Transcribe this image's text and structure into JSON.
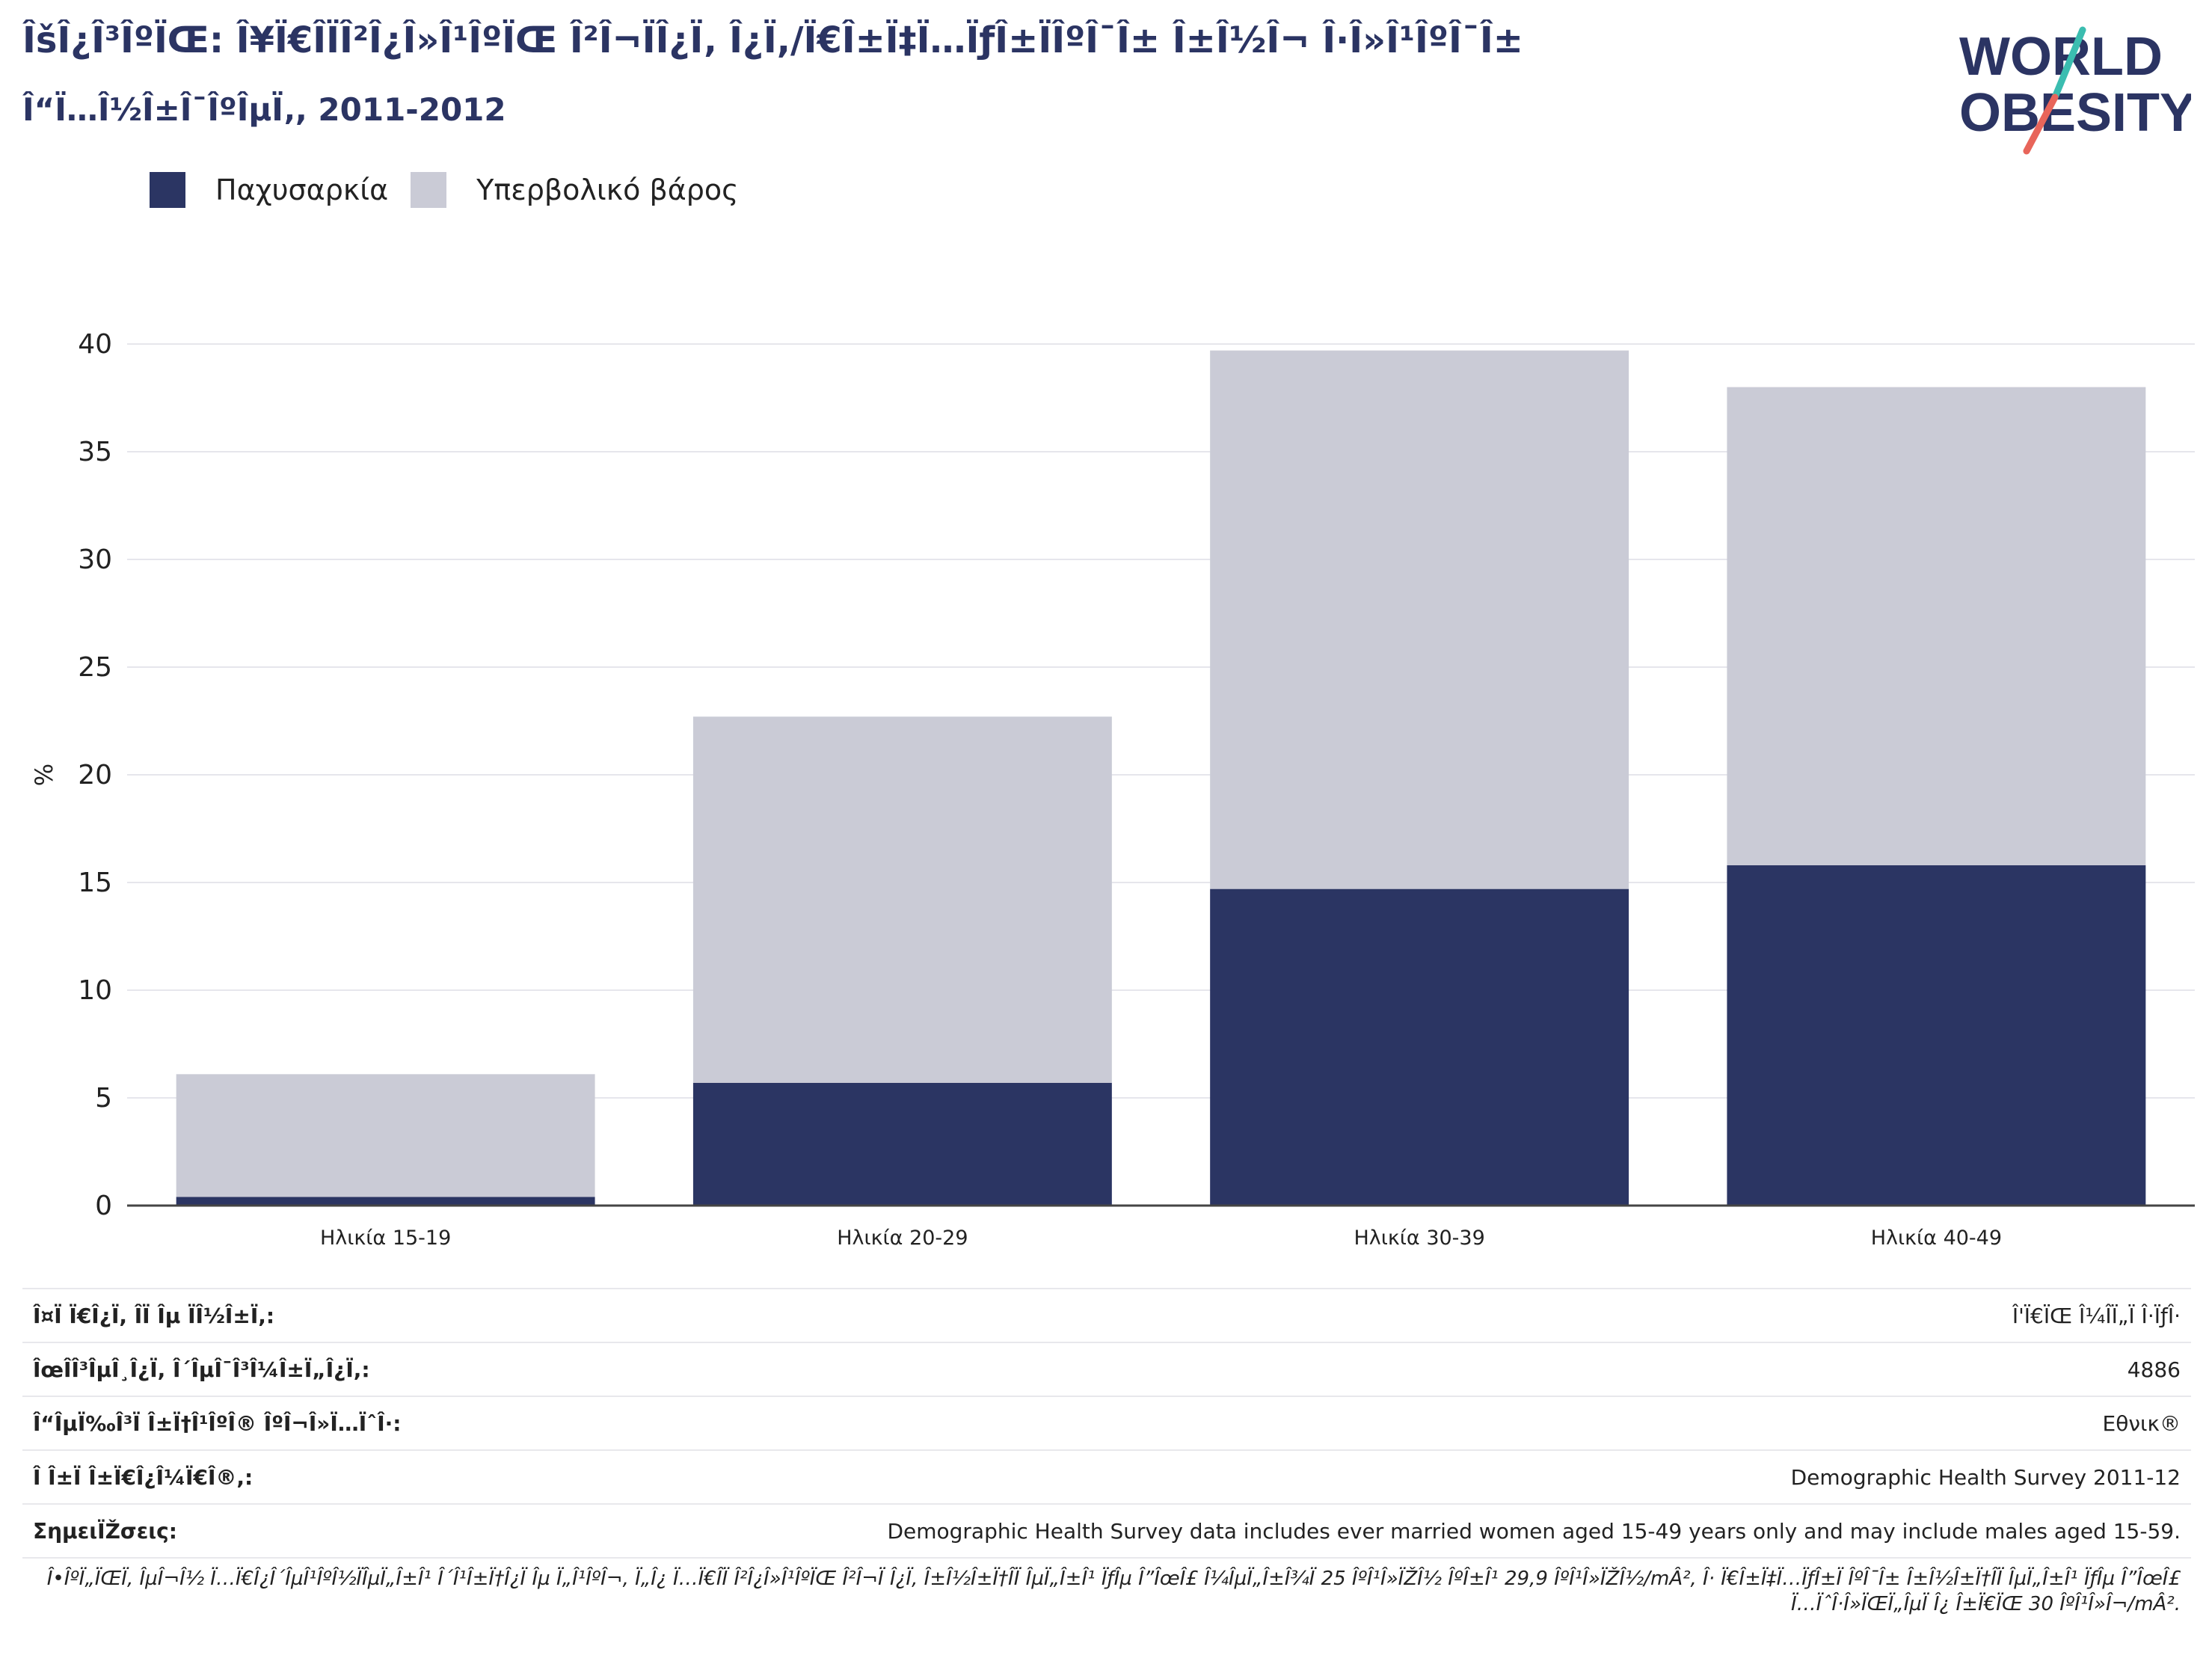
{
  "header": {
    "title": "ÎšÎ¿Î³ÎºÏŒ: Î¥Ï€Î­ÏÎ²Î¿Î»Î¹ÎºÏŒ Î²Î¬ÏÎ¿Ï‚ Î¿Ï,/Ï€Î±Ï‡Ï…ÏƒÎ±ÏÎºÎ¯Î± Î±Î½Î¬ Î·Î»Î¹ÎºÎ¯Î±",
    "subtitle": "Î“Ï…Î½Î±Î¯ÎºÎµÏ‚, 2011-2012"
  },
  "logo": {
    "line1": "WORLD",
    "line2": "OBESITY"
  },
  "colors": {
    "obesity": "#2b3563",
    "overweight": "#cacbd6",
    "title": "#2b3463"
  },
  "legend": {
    "obesity_label": "Παχυσαρκία",
    "overweight_label": "Υπερβολικό βάρος"
  },
  "chart_data": {
    "type": "bar",
    "stacked": true,
    "categories": [
      "Ηλικία 15-19",
      "Ηλικία 20-29",
      "Ηλικία 30-39",
      "Ηλικία 40-49"
    ],
    "series": [
      {
        "name": "Παχυσαρκία",
        "values": [
          0.4,
          5.7,
          14.7,
          15.8
        ]
      },
      {
        "name": "Υπερβολικό βάρος",
        "values": [
          5.7,
          17.0,
          25.0,
          22.2
        ]
      }
    ],
    "ylabel": "%",
    "ylim": [
      0,
      40
    ],
    "yticks": [
      0,
      5,
      10,
      15,
      20,
      25,
      30,
      35,
      40
    ],
    "grid": true,
    "legend_position": "top-left"
  },
  "info": [
    {
      "label": "Î¤Ï Ï€Î¿Ï, ÎÏ Îµ ÏÎ½Î±Ï,:",
      "value": "Î'Ï€ÏŒ Î¼ÎÏ„Ï Î·ÏƒÎ·"
    },
    {
      "label": "ÎœÎ­Î³ÎµÎ¸Î¿Ï, Î´ÎµÎ¯Î³Î¼Î±Ï„Î¿Ï,:",
      "value": "4886"
    },
    {
      "label": "Î“ÎµÏ‰Î³Ï Î±Ï†Î¹ÎºÎ® ÎºÎ¬Î»Ï…ÏˆÎ·:",
      "value": "Εθνικ®"
    },
    {
      "label": "Î Î±Ï Î±Ï€Î¿Î¼Ï€Î®,:",
      "value": "Demographic Health Survey 2011-12"
    },
    {
      "label": "ΣημειÏŽσεις:",
      "value": "Demographic Health Survey data includes ever married women aged 15-49 years only and may include males aged 15-59."
    }
  ],
  "footnote": "Î•ÎºÏ„ÏŒÏ, ÎµÎ¬Î½ Ï…Ï€Î¿Î´ÎµÎ¹ÎºÎ½ÏÎµÏ„Î±Î¹ Î´Î¹Î±Ï†Î¿Ï Îµ Ï„Î¹ÎºÎ¬, Ï„Î¿ Ï…Ï€Î­Ï Î²Î¿Î»Î¹ÎºÏŒ Î²Î¬Ï Î¿Ï, Î±Î½Î±Ï†Î­Ï ÎµÏ„Î±Î¹ ÏƒÎµ Î”ÎœÎ£ Î¼ÎµÏ„Î±Î¾Ï 25 ÎºÎ¹Î»ÏŽÎ½ ÎºÎ±Î¹ 29,9 ÎºÎ¹Î»ÏŽÎ½/mÂ², Î· Ï€Î±Ï‡Ï…ÏƒÎ±Ï ÎºÎ¯Î± Î±Î½Î±Ï†Î­Ï ÎµÏ„Î±Î¹ ÏƒÎµ Î”ÎœÎ£ Ï…ÏˆÎ·Î»ÏŒÏ„ÎµÏ Î¿ Î±Ï€ÏŒ 30 ÎºÎ¹Î»Î¬/mÂ²."
}
